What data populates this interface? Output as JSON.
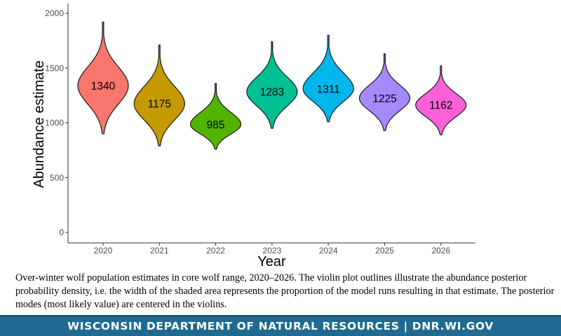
{
  "chart_data": {
    "type": "violin",
    "xlabel": "Year",
    "ylabel": "Abundance estimate",
    "ylim": [
      0,
      2000
    ],
    "yticks": [
      0,
      500,
      1000,
      1500,
      2000
    ],
    "grid": false,
    "categories": [
      "2020",
      "2021",
      "2022",
      "2023",
      "2024",
      "2025",
      "2026"
    ],
    "modes": [
      1340,
      1175,
      985,
      1283,
      1311,
      1225,
      1162
    ],
    "mode_labels": [
      "1340",
      "1175",
      "985",
      "1283",
      "1311",
      "1225",
      "1162"
    ],
    "min_values": [
      900,
      790,
      760,
      950,
      1010,
      930,
      890
    ],
    "max_values": [
      1920,
      1710,
      1360,
      1740,
      1800,
      1630,
      1520
    ],
    "colors": [
      "#f8766d",
      "#c49a00",
      "#53b400",
      "#00c094",
      "#00b6eb",
      "#a58aff",
      "#fb61d7"
    ]
  },
  "caption": "Over-winter wolf population estimates in core wolf range, 2020–2026. The violin plot outlines illustrate the abundance posterior probability density, i.e.  the width of the shaded area represents the proportion of the model runs resulting in that estimate.  The posterior modes (most likely value) are centered in the violins.",
  "footer": {
    "text": "WISCONSIN DEPARTMENT OF NATURAL RESOURCES | DNR.WI.GOV",
    "background": "#1e6a90"
  }
}
